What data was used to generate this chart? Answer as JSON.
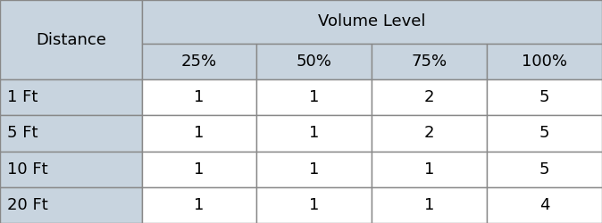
{
  "header_top": "Volume Level",
  "header_left": "Distance",
  "col_headers": [
    "25%",
    "50%",
    "75%",
    "100%"
  ],
  "row_labels": [
    "1 Ft",
    "5 Ft",
    "10 Ft",
    "20 Ft"
  ],
  "table_data": [
    [
      1,
      1,
      2,
      5
    ],
    [
      1,
      1,
      2,
      5
    ],
    [
      1,
      1,
      1,
      5
    ],
    [
      1,
      1,
      1,
      4
    ]
  ],
  "header_bg_color": "#c8d4df",
  "row_bg_color": "#ffffff",
  "border_color": "#888888",
  "text_color": "#000000",
  "header_fontsize": 13,
  "cell_fontsize": 13,
  "fig_width": 6.74,
  "fig_height": 2.5,
  "dpi": 100,
  "col_widths": [
    1.6,
    1.3,
    1.3,
    1.3,
    1.3
  ],
  "row_heights": [
    1.7,
    1.4,
    1.4,
    1.4,
    1.4,
    1.4
  ]
}
